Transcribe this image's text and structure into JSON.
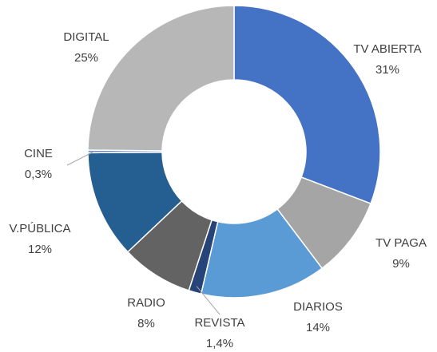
{
  "chart_data": {
    "type": "donut",
    "categories": [
      "TV ABIERTA",
      "TV PAGA",
      "DIARIOS",
      "REVISTA",
      "RADIO",
      "V.PÚBLICA",
      "CINE",
      "DIGITAL"
    ],
    "values": [
      31,
      9,
      14,
      1.4,
      8,
      12,
      0.3,
      25
    ],
    "value_labels": [
      "31%",
      "9%",
      "14%",
      "1,4%",
      "8%",
      "12%",
      "0,3%",
      "25%"
    ],
    "colors": [
      "#4472c4",
      "#a5a5a5",
      "#5b9bd5",
      "#264478",
      "#636363",
      "#255e91",
      "#698ed0",
      "#b7b7b7"
    ]
  }
}
